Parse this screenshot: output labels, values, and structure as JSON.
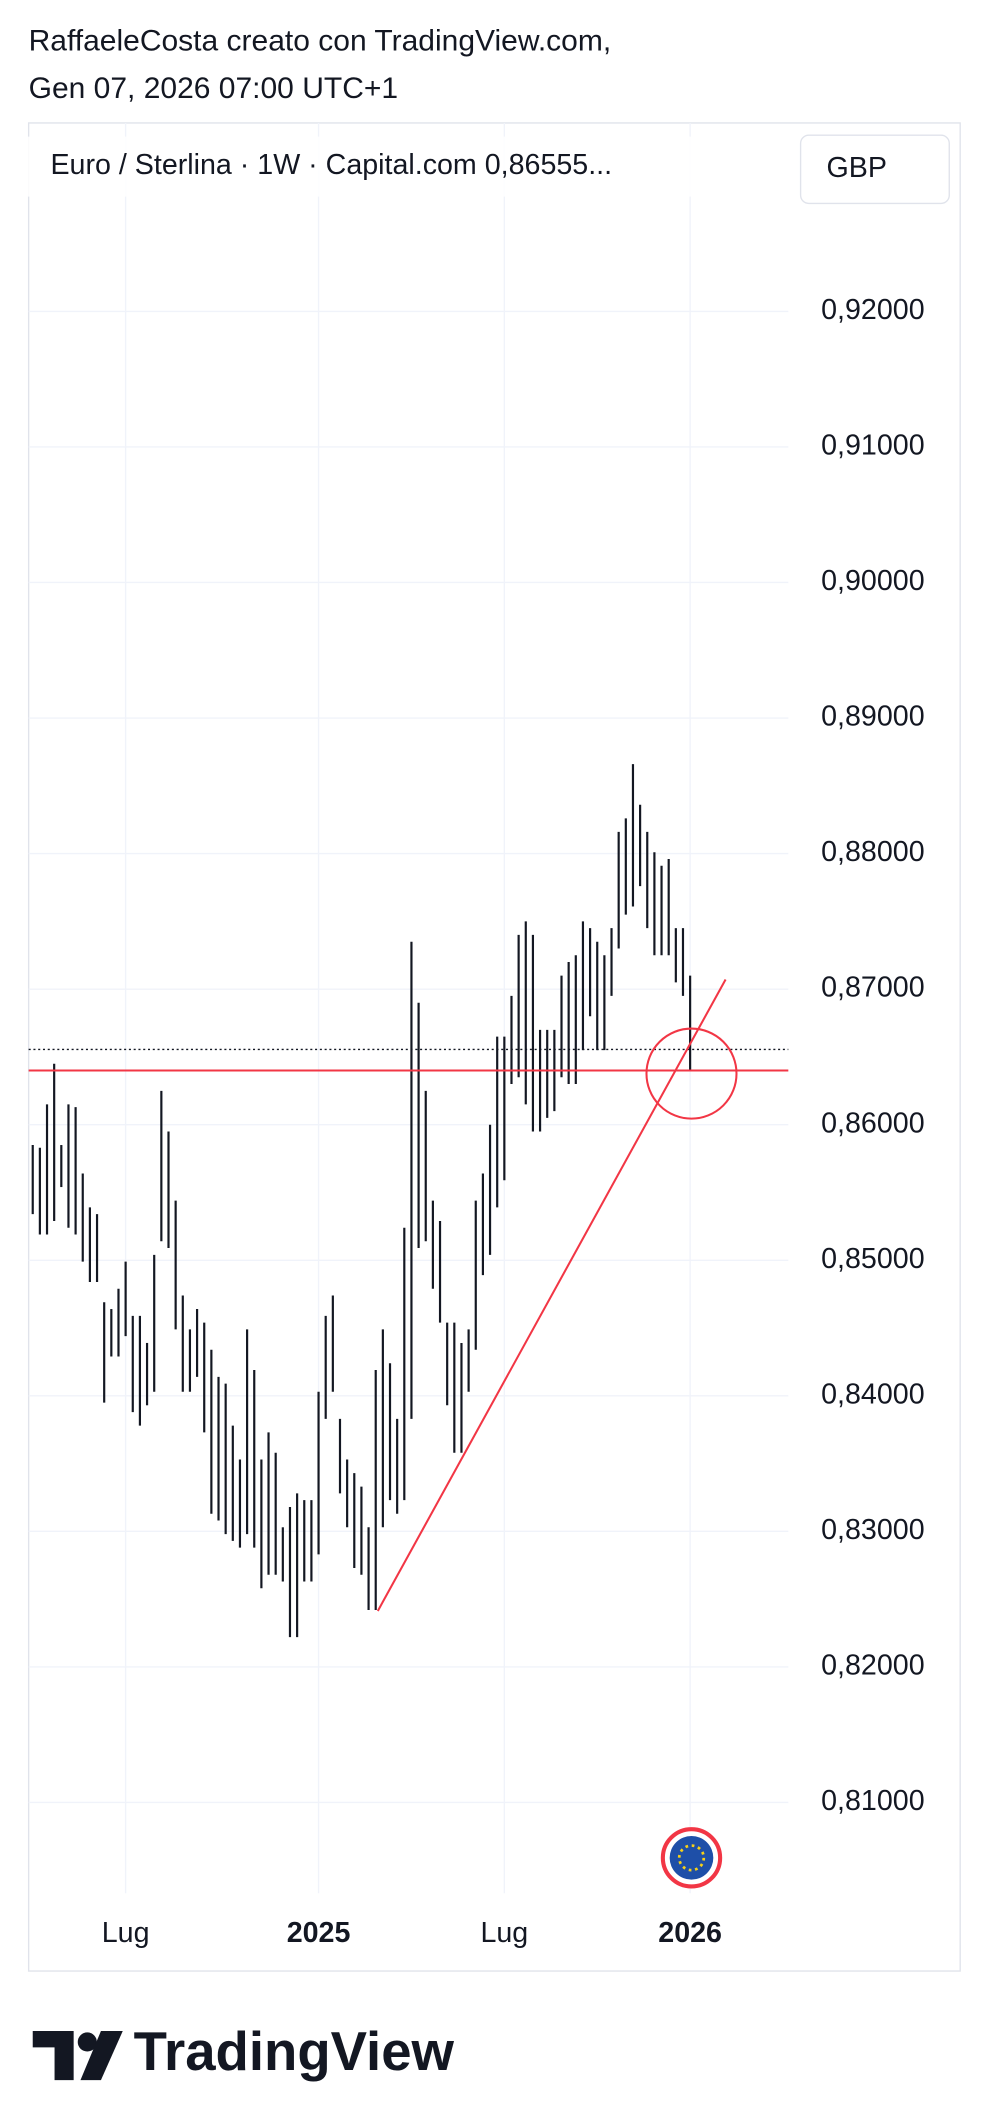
{
  "header": {
    "line1": "RaffaeleCosta creato con TradingView.com,",
    "line2": "Gen 07, 2026 07:00 UTC+1"
  },
  "legend": "Euro / Sterlina · 1W · Capital.com  0,86555...",
  "currency_button": "GBP",
  "brand": "TradingView",
  "chart_data": {
    "type": "range-bar",
    "color": "#131722",
    "categories": [
      null,
      null,
      null,
      null,
      null,
      null,
      null,
      null,
      null,
      null,
      null,
      null,
      null,
      null,
      null,
      null,
      null,
      null,
      null,
      null,
      null,
      null,
      null,
      null,
      null,
      null,
      null,
      null,
      null,
      null,
      null,
      null,
      null,
      null,
      null,
      null,
      null,
      null,
      null,
      null,
      null,
      null,
      null,
      null,
      null,
      null,
      null,
      null,
      null,
      null,
      null,
      null,
      null,
      null,
      null,
      null,
      null,
      null,
      null,
      null,
      null,
      null,
      null,
      null,
      null,
      null,
      null,
      null,
      null,
      null,
      null,
      null,
      null,
      null,
      null,
      null,
      null,
      null,
      null,
      null,
      null,
      null,
      null,
      null,
      null,
      null,
      null,
      null,
      null,
      null,
      null,
      null,
      null
    ],
    "highs": [
      0.8585,
      0.8583,
      0.8615,
      0.8645,
      0.8585,
      0.8615,
      0.8613,
      0.8564,
      0.8539,
      0.8534,
      0.8469,
      0.8464,
      0.8479,
      0.8499,
      0.8459,
      0.8459,
      0.8439,
      0.8504,
      0.8625,
      0.8595,
      0.8544,
      0.8474,
      0.8449,
      0.8464,
      0.8454,
      0.8434,
      0.8414,
      0.8409,
      0.8378,
      0.8353,
      0.8449,
      0.8419,
      0.8353,
      0.8373,
      0.8358,
      0.8303,
      0.8318,
      0.8328,
      0.8323,
      0.8323,
      0.8403,
      0.8459,
      0.8474,
      0.8383,
      0.8353,
      0.8343,
      0.8333,
      0.8303,
      0.8419,
      0.8449,
      0.8424,
      0.8383,
      0.8524,
      0.8735,
      0.869,
      0.8625,
      0.8544,
      0.8529,
      0.8454,
      0.8454,
      0.8439,
      0.8449,
      0.8544,
      0.8564,
      0.86,
      0.8665,
      0.8665,
      0.8695,
      0.874,
      0.875,
      0.874,
      0.867,
      0.867,
      0.867,
      0.871,
      0.872,
      0.8725,
      0.875,
      0.8745,
      0.8735,
      0.8725,
      0.8745,
      0.8816,
      0.8826,
      0.8866,
      0.8836,
      0.8816,
      0.8801,
      0.8791,
      0.8796,
      0.8745,
      0.8745,
      0.871
    ],
    "lows": [
      0.8534,
      0.8519,
      0.8519,
      0.8529,
      0.8554,
      0.8524,
      0.8519,
      0.8499,
      0.8484,
      0.8484,
      0.8395,
      0.8429,
      0.8429,
      0.8444,
      0.8388,
      0.8378,
      0.8393,
      0.8403,
      0.8514,
      0.8509,
      0.8449,
      0.8403,
      0.8403,
      0.8414,
      0.8373,
      0.8313,
      0.8308,
      0.8298,
      0.8293,
      0.8288,
      0.8298,
      0.8288,
      0.8258,
      0.8268,
      0.8268,
      0.8263,
      0.8222,
      0.8222,
      0.8263,
      0.8263,
      0.8283,
      0.8383,
      0.8403,
      0.8328,
      0.8303,
      0.8273,
      0.8268,
      0.8242,
      0.8242,
      0.8303,
      0.8323,
      0.8313,
      0.8323,
      0.8383,
      0.8509,
      0.8514,
      0.8479,
      0.8454,
      0.8393,
      0.8358,
      0.8358,
      0.8403,
      0.8434,
      0.8489,
      0.8504,
      0.8539,
      0.8559,
      0.863,
      0.8635,
      0.8615,
      0.8595,
      0.8595,
      0.8605,
      0.861,
      0.8635,
      0.863,
      0.863,
      0.8655,
      0.868,
      0.8655,
      0.8655,
      0.8695,
      0.873,
      0.8755,
      0.8761,
      0.8776,
      0.8745,
      0.8725,
      0.8725,
      0.8725,
      0.8705,
      0.8695,
      0.864
    ],
    "ylim": [
      0.8033,
      0.9339
    ],
    "yticks": [
      {
        "value": 0.81,
        "label": "0,81000"
      },
      {
        "value": 0.82,
        "label": "0,82000"
      },
      {
        "value": 0.83,
        "label": "0,83000"
      },
      {
        "value": 0.84,
        "label": "0,84000"
      },
      {
        "value": 0.85,
        "label": "0,85000"
      },
      {
        "value": 0.86,
        "label": "0,86000"
      },
      {
        "value": 0.87,
        "label": "0,87000"
      },
      {
        "value": 0.88,
        "label": "0,88000"
      },
      {
        "value": 0.89,
        "label": "0,89000"
      },
      {
        "value": 0.9,
        "label": "0,90000"
      },
      {
        "value": 0.91,
        "label": "0,91000"
      },
      {
        "value": 0.92,
        "label": "0,92000"
      }
    ],
    "xticks": [
      {
        "value": 13,
        "label": "Lug"
      },
      {
        "value": 40,
        "label": "2025"
      },
      {
        "value": 66,
        "label": "Lug"
      },
      {
        "value": 92,
        "label": "2026"
      }
    ],
    "last_price": 0.86555,
    "support_level": 0.864,
    "grid": true
  }
}
